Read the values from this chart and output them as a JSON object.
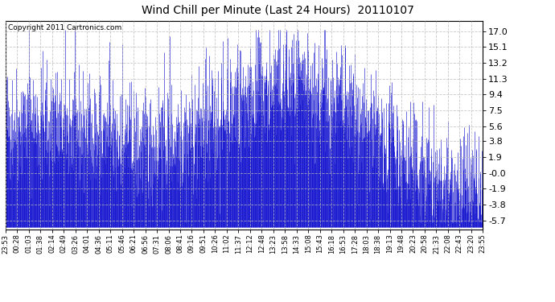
{
  "title": "Wind Chill per Minute (Last 24 Hours)  20110107",
  "copyright": "Copyright 2011 Cartronics.com",
  "line_color": "#0000CC",
  "background_color": "#FFFFFF",
  "grid_color": "#BBBBBB",
  "yticks": [
    17.0,
    15.1,
    13.2,
    11.3,
    9.4,
    7.5,
    5.6,
    3.8,
    1.9,
    -0.0,
    -1.9,
    -3.8,
    -5.7
  ],
  "ymin": -6.8,
  "ymax": 18.2,
  "xtick_labels": [
    "23:53",
    "00:28",
    "01:03",
    "01:38",
    "02:14",
    "02:49",
    "03:26",
    "04:01",
    "04:36",
    "05:11",
    "05:46",
    "06:21",
    "06:56",
    "07:31",
    "08:06",
    "08:41",
    "09:16",
    "09:51",
    "10:26",
    "11:02",
    "11:37",
    "12:12",
    "12:48",
    "13:23",
    "13:58",
    "14:33",
    "15:08",
    "15:43",
    "16:18",
    "16:53",
    "17:28",
    "18:03",
    "18:38",
    "19:13",
    "19:48",
    "20:23",
    "20:58",
    "21:33",
    "22:08",
    "22:43",
    "23:20",
    "23:55"
  ],
  "num_points": 1440,
  "seed": 42
}
